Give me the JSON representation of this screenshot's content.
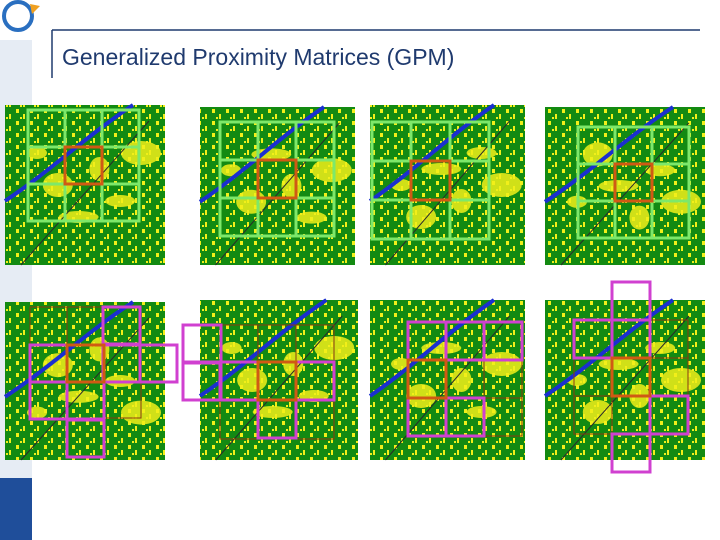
{
  "header": {
    "title": "Generalized Proximity Matrices (GPM)"
  }
}
